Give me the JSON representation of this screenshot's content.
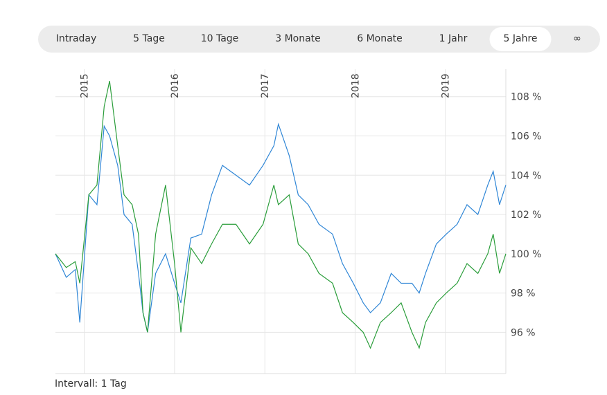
{
  "tabs": [
    "Intraday",
    "5 Tage",
    "10 Tage",
    "3 Monate",
    "6 Monate",
    "1 Jahr",
    "5 Jahre",
    "∞"
  ],
  "active_tab": 6,
  "chart_data": {
    "type": "line",
    "x": [
      2014.68,
      2014.8,
      2014.9,
      2014.95,
      2015.05,
      2015.14,
      2015.22,
      2015.28,
      2015.37,
      2015.44,
      2015.53,
      2015.6,
      2015.65,
      2015.7,
      2015.79,
      2015.9,
      2016.0,
      2016.07,
      2016.18,
      2016.3,
      2016.41,
      2016.53,
      2016.68,
      2016.83,
      2016.98,
      2017.1,
      2017.15,
      2017.27,
      2017.37,
      2017.48,
      2017.6,
      2017.75,
      2017.86,
      2017.98,
      2018.09,
      2018.17,
      2018.28,
      2018.4,
      2018.51,
      2018.63,
      2018.71,
      2018.78,
      2018.9,
      2019.01,
      2019.13,
      2019.24,
      2019.36,
      2019.47,
      2019.53,
      2019.6,
      2019.67
    ],
    "series": [
      {
        "color": "#2f86d6",
        "values": [
          100,
          98.8,
          99.2,
          96.5,
          103,
          102.5,
          106.5,
          106,
          104.5,
          102,
          101.5,
          99,
          97,
          96,
          99,
          100,
          98.5,
          97.5,
          100.8,
          101,
          103,
          104.5,
          104,
          103.5,
          104.5,
          105.5,
          106.6,
          105,
          103,
          102.5,
          101.5,
          101,
          99.5,
          98.5,
          97.5,
          97,
          97.5,
          99,
          98.5,
          98.5,
          98,
          99,
          100.5,
          101,
          101.5,
          102.5,
          102,
          103.5,
          104.2,
          102.5,
          103.5
        ]
      },
      {
        "color": "#2a9d3a",
        "values": [
          100,
          99.3,
          99.6,
          98.5,
          103,
          103.5,
          107.5,
          108.8,
          105.5,
          103,
          102.5,
          101,
          97,
          96,
          101,
          103.5,
          99.5,
          96,
          100.3,
          99.5,
          100.5,
          101.5,
          101.5,
          100.5,
          101.5,
          103.5,
          102.5,
          103,
          100.5,
          100,
          99,
          98.5,
          97,
          96.5,
          96,
          95.2,
          96.5,
          97,
          97.5,
          96,
          95.2,
          96.5,
          97.5,
          98,
          98.5,
          99.5,
          99,
          100,
          101,
          99,
          100
        ]
      }
    ],
    "xlim": [
      2014.68,
      2019.67
    ],
    "xticks": [
      2015,
      2016,
      2017,
      2018,
      2019
    ],
    "ylim": [
      93.9,
      109.4
    ],
    "yticks": [
      {
        "value": 96,
        "label": "96 %"
      },
      {
        "value": 98,
        "label": "98 %"
      },
      {
        "value": 100,
        "label": "100 %"
      },
      {
        "value": 102,
        "label": "102 %"
      },
      {
        "value": 104,
        "label": "104 %"
      },
      {
        "value": 106,
        "label": "106 %"
      },
      {
        "value": 108,
        "label": "108 %"
      }
    ],
    "grid": true
  },
  "footer": "Intervall: 1 Tag"
}
